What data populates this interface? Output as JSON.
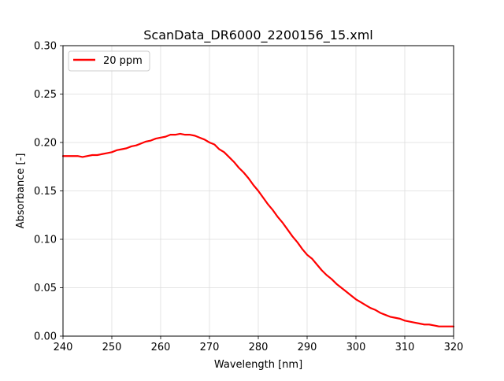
{
  "chart_data": {
    "type": "line",
    "title": "ScanData_DR6000_2200156_15.xml",
    "xlabel": "Wavelength [nm]",
    "ylabel": "Absorbance [-]",
    "xlim": [
      240,
      320
    ],
    "ylim": [
      0.0,
      0.3
    ],
    "xticks": [
      "240",
      "250",
      "260",
      "270",
      "280",
      "290",
      "300",
      "310",
      "320"
    ],
    "yticks": [
      "0.00",
      "0.05",
      "0.10",
      "0.15",
      "0.20",
      "0.25",
      "0.30"
    ],
    "grid": true,
    "legend_position": "top-left",
    "series": [
      {
        "name": "20 ppm",
        "color": "#ff0000",
        "x": [
          240,
          241,
          242,
          243,
          244,
          245,
          246,
          247,
          248,
          249,
          250,
          251,
          252,
          253,
          254,
          255,
          256,
          257,
          258,
          259,
          260,
          261,
          262,
          263,
          264,
          265,
          266,
          267,
          268,
          269,
          270,
          271,
          272,
          273,
          274,
          275,
          276,
          277,
          278,
          279,
          280,
          281,
          282,
          283,
          284,
          285,
          286,
          287,
          288,
          289,
          290,
          291,
          292,
          293,
          294,
          295,
          296,
          297,
          298,
          299,
          300,
          301,
          302,
          303,
          304,
          305,
          306,
          307,
          308,
          309,
          310,
          311,
          312,
          313,
          314,
          315,
          316,
          317,
          318,
          319,
          320
        ],
        "y": [
          0.186,
          0.186,
          0.186,
          0.186,
          0.185,
          0.186,
          0.187,
          0.187,
          0.188,
          0.189,
          0.19,
          0.192,
          0.193,
          0.194,
          0.196,
          0.197,
          0.199,
          0.201,
          0.202,
          0.204,
          0.205,
          0.206,
          0.208,
          0.208,
          0.209,
          0.208,
          0.208,
          0.207,
          0.205,
          0.203,
          0.2,
          0.198,
          0.193,
          0.19,
          0.185,
          0.18,
          0.174,
          0.169,
          0.163,
          0.156,
          0.15,
          0.143,
          0.136,
          0.13,
          0.123,
          0.117,
          0.11,
          0.103,
          0.097,
          0.09,
          0.084,
          0.08,
          0.074,
          0.068,
          0.063,
          0.059,
          0.054,
          0.05,
          0.046,
          0.042,
          0.038,
          0.035,
          0.032,
          0.029,
          0.027,
          0.024,
          0.022,
          0.02,
          0.019,
          0.018,
          0.016,
          0.015,
          0.014,
          0.013,
          0.012,
          0.012,
          0.011,
          0.01,
          0.01,
          0.01,
          0.01
        ]
      }
    ]
  }
}
